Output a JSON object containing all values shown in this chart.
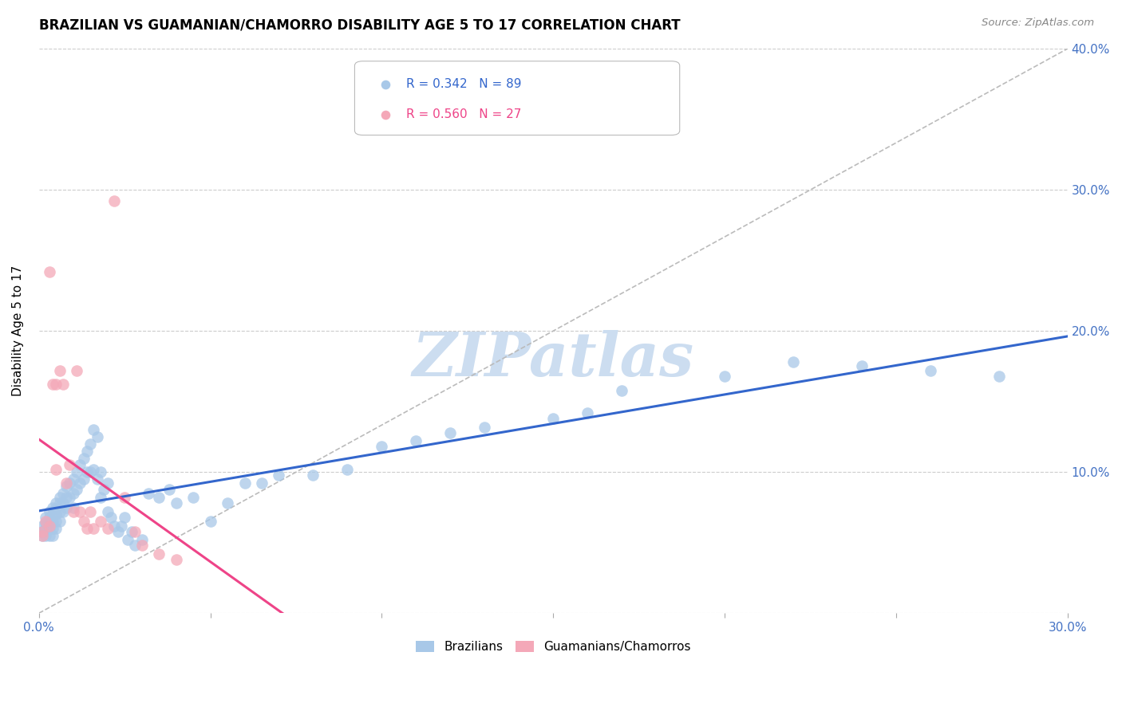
{
  "title": "BRAZILIAN VS GUAMANIAN/CHAMORRO DISABILITY AGE 5 TO 17 CORRELATION CHART",
  "source": "Source: ZipAtlas.com",
  "ylabel": "Disability Age 5 to 17",
  "xmin": 0.0,
  "xmax": 0.3,
  "ymin": 0.0,
  "ymax": 0.4,
  "xticks": [
    0.0,
    0.05,
    0.1,
    0.15,
    0.2,
    0.25,
    0.3
  ],
  "yticks": [
    0.0,
    0.1,
    0.2,
    0.3,
    0.4
  ],
  "ytick_labels_right": [
    "",
    "10.0%",
    "20.0%",
    "30.0%",
    "40.0%"
  ],
  "xtick_labels": [
    "0.0%",
    "",
    "",
    "",
    "",
    "",
    "30.0%"
  ],
  "blue_color": "#a8c8e8",
  "pink_color": "#f4a8b8",
  "blue_R": 0.342,
  "blue_N": 89,
  "pink_R": 0.56,
  "pink_N": 27,
  "blue_line_color": "#3366cc",
  "pink_line_color": "#ee4488",
  "diag_line_color": "#bbbbbb",
  "watermark": "ZIPatlas",
  "watermark_color": "#ccddf0",
  "legend1": "Brazilians",
  "legend2": "Guamanians/Chamorros",
  "blue_scatter_x": [
    0.001,
    0.001,
    0.001,
    0.002,
    0.002,
    0.002,
    0.002,
    0.003,
    0.003,
    0.003,
    0.003,
    0.003,
    0.004,
    0.004,
    0.004,
    0.004,
    0.004,
    0.005,
    0.005,
    0.005,
    0.005,
    0.005,
    0.006,
    0.006,
    0.006,
    0.006,
    0.007,
    0.007,
    0.007,
    0.008,
    0.008,
    0.008,
    0.009,
    0.009,
    0.01,
    0.01,
    0.01,
    0.011,
    0.011,
    0.012,
    0.012,
    0.013,
    0.013,
    0.014,
    0.014,
    0.015,
    0.015,
    0.016,
    0.016,
    0.017,
    0.017,
    0.018,
    0.018,
    0.019,
    0.02,
    0.02,
    0.021,
    0.022,
    0.023,
    0.024,
    0.025,
    0.026,
    0.027,
    0.028,
    0.03,
    0.032,
    0.035,
    0.038,
    0.04,
    0.045,
    0.05,
    0.055,
    0.06,
    0.065,
    0.07,
    0.08,
    0.09,
    0.1,
    0.11,
    0.12,
    0.13,
    0.15,
    0.16,
    0.17,
    0.2,
    0.22,
    0.24,
    0.26,
    0.28
  ],
  "blue_scatter_y": [
    0.062,
    0.058,
    0.055,
    0.068,
    0.064,
    0.06,
    0.055,
    0.072,
    0.068,
    0.064,
    0.06,
    0.055,
    0.075,
    0.07,
    0.065,
    0.06,
    0.055,
    0.078,
    0.074,
    0.07,
    0.065,
    0.06,
    0.082,
    0.078,
    0.072,
    0.065,
    0.085,
    0.078,
    0.072,
    0.09,
    0.082,
    0.075,
    0.092,
    0.082,
    0.095,
    0.085,
    0.075,
    0.1,
    0.088,
    0.105,
    0.092,
    0.11,
    0.095,
    0.115,
    0.1,
    0.12,
    0.1,
    0.13,
    0.102,
    0.125,
    0.095,
    0.1,
    0.082,
    0.088,
    0.092,
    0.072,
    0.068,
    0.062,
    0.058,
    0.062,
    0.068,
    0.052,
    0.058,
    0.048,
    0.052,
    0.085,
    0.082,
    0.088,
    0.078,
    0.082,
    0.065,
    0.078,
    0.092,
    0.092,
    0.098,
    0.098,
    0.102,
    0.118,
    0.122,
    0.128,
    0.132,
    0.138,
    0.142,
    0.158,
    0.168,
    0.178,
    0.175,
    0.172,
    0.168
  ],
  "pink_scatter_x": [
    0.001,
    0.001,
    0.002,
    0.003,
    0.003,
    0.004,
    0.005,
    0.005,
    0.006,
    0.007,
    0.008,
    0.009,
    0.01,
    0.011,
    0.012,
    0.013,
    0.014,
    0.015,
    0.016,
    0.018,
    0.02,
    0.022,
    0.025,
    0.028,
    0.03,
    0.035,
    0.04
  ],
  "pink_scatter_y": [
    0.058,
    0.055,
    0.065,
    0.242,
    0.062,
    0.162,
    0.102,
    0.162,
    0.172,
    0.162,
    0.092,
    0.105,
    0.072,
    0.172,
    0.072,
    0.065,
    0.06,
    0.072,
    0.06,
    0.065,
    0.06,
    0.292,
    0.082,
    0.058,
    0.048,
    0.042,
    0.038
  ]
}
